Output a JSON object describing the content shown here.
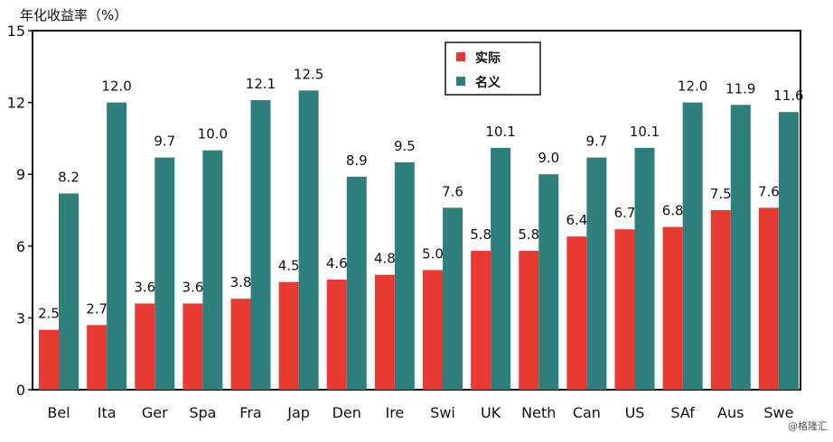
{
  "chart_data": {
    "type": "bar",
    "title": "",
    "ylabel": "年化收益率（%）",
    "xlabel": "",
    "ylim": [
      0,
      15
    ],
    "yticks": [
      0,
      3,
      6,
      9,
      12,
      15
    ],
    "legend_position": "top-center",
    "categories": [
      "Bel",
      "Ita",
      "Ger",
      "Spa",
      "Fra",
      "Jap",
      "Den",
      "Ire",
      "Swi",
      "UK",
      "Neth",
      "Can",
      "US",
      "SAf",
      "Aus",
      "Swe"
    ],
    "series": [
      {
        "name": "实际",
        "color": "#e63a33",
        "values": [
          2.5,
          2.7,
          3.6,
          3.6,
          3.8,
          4.5,
          4.6,
          4.8,
          5.0,
          5.8,
          5.8,
          6.4,
          6.7,
          6.8,
          7.5,
          7.6
        ],
        "labels": [
          "2.5",
          "2.7",
          "3.6",
          "3.6",
          "3.8",
          "4.5",
          "4.6",
          "4.8",
          "5.0",
          "5.8",
          "5.8",
          "6.4",
          "6.7",
          "6.8",
          "7.5",
          "7.6"
        ]
      },
      {
        "name": "名义",
        "color": "#2f7f7c",
        "values": [
          8.2,
          12.0,
          9.7,
          10.0,
          12.1,
          12.5,
          8.9,
          9.5,
          7.6,
          10.1,
          9.0,
          9.7,
          10.1,
          12.0,
          11.9,
          11.6
        ],
        "labels": [
          "8.2",
          "12.0",
          "9.7",
          "10.0",
          "12.1",
          "12.5",
          "8.9",
          "9.5",
          "7.6",
          "10.1",
          "9.0",
          "9.7",
          "10.1",
          "12.0",
          "11.9",
          "11.6"
        ]
      }
    ],
    "grid": false,
    "watermark": "@格隆汇"
  }
}
